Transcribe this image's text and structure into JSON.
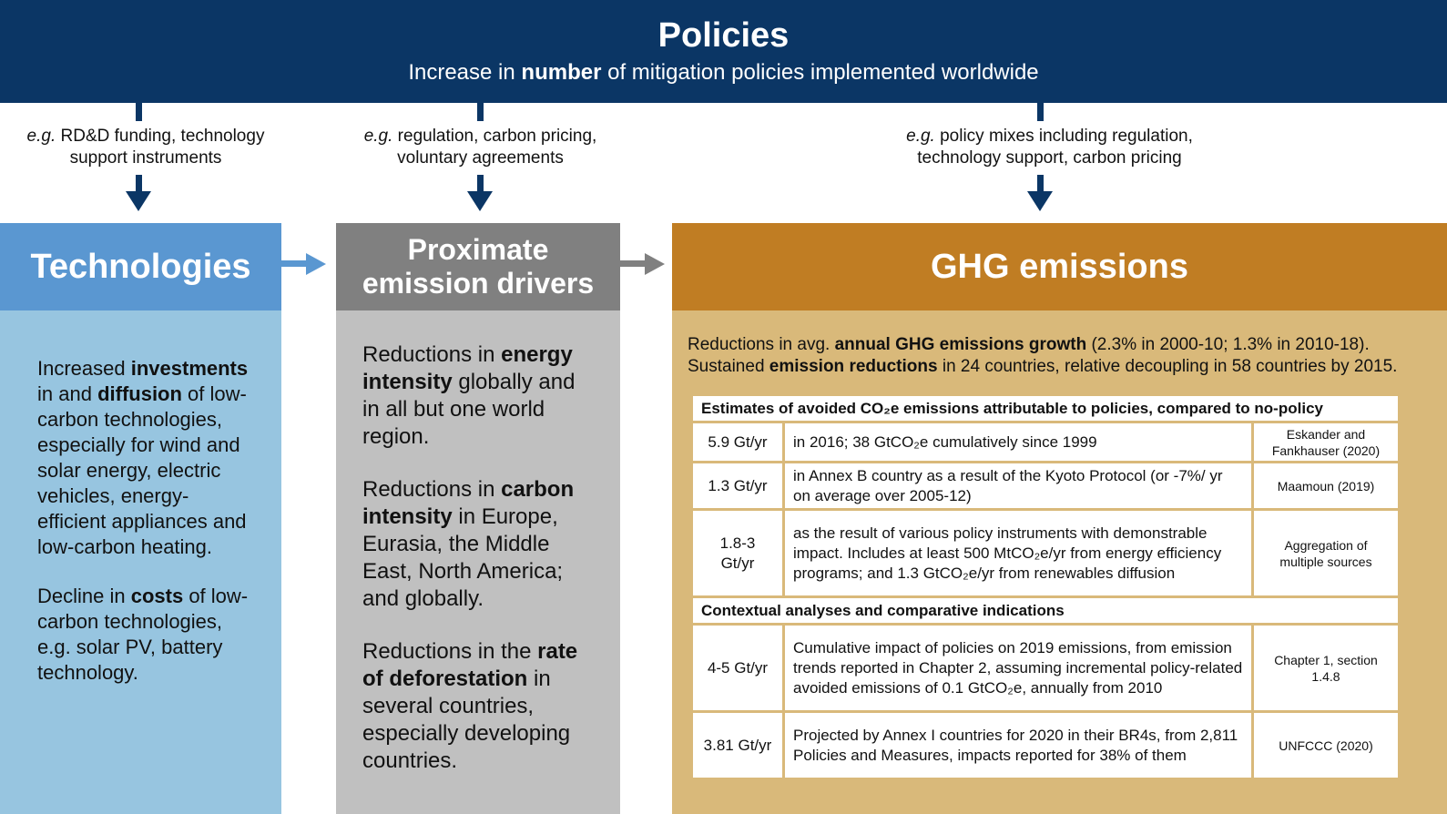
{
  "policies": {
    "title": "Policies",
    "subtitle_pre": "Increase in ",
    "subtitle_bold": "number",
    "subtitle_post": " of mitigation policies implemented worldwide"
  },
  "examples": [
    {
      "eg": "e.g.",
      "text": " RD&D funding, technology support instruments"
    },
    {
      "eg": "e.g.",
      "text": " regulation, carbon pricing, voluntary agreements"
    },
    {
      "eg": "e.g.",
      "text": " policy mixes including regulation, technology support, carbon pricing"
    }
  ],
  "technologies": {
    "title": "Technologies",
    "p1": [
      "Increased ",
      "investments",
      " in and ",
      "diffusion",
      " of low-carbon technologies, especially for wind and solar energy, electric vehicles, energy-efficient appliances and low-carbon heating."
    ],
    "p2": [
      "Decline in ",
      "costs",
      " of low-carbon technologies, e.g. solar PV, battery technology."
    ]
  },
  "drivers": {
    "title_line1": "Proximate",
    "title_line2": "emission drivers",
    "p1": [
      "Reductions in ",
      "energy intensity",
      " globally and in all but one world region."
    ],
    "p2": [
      "Reductions in ",
      "carbon intensity",
      " in Europe, Eurasia, the Middle East, North America; and globally."
    ],
    "p3": [
      "Reductions in the ",
      "rate of deforestation",
      " in several countries, especially developing countries."
    ]
  },
  "ghg": {
    "title": "GHG emissions",
    "line1": [
      "Reductions in avg. ",
      "annual GHG emissions growth",
      " (2.3% in 2000-10; 1.3% in 2010-18)."
    ],
    "line2": [
      "Sustained ",
      "emission reductions",
      " in 24 countries, relative decoupling in 58 countries by 2015."
    ],
    "table": {
      "section1": "Estimates of avoided CO₂e emissions attributable to policies, compared to no-policy",
      "rows1": [
        {
          "value": "5.9 Gt/yr",
          "desc": "in 2016; 38 GtCO₂e cumulatively since 1999",
          "source": "Eskander and Fankhauser (2020)"
        },
        {
          "value": "1.3 Gt/yr",
          "desc": "in Annex B country as a result of the Kyoto Protocol (or -7%/ yr on average over 2005-12)",
          "source": "Maamoun (2019)"
        },
        {
          "value": "1.8-3 Gt/yr",
          "desc": "as the result of various policy instruments with demonstrable impact. Includes at least 500 MtCO₂e/yr from energy efficiency programs; and 1.3 GtCO₂e/yr from renewables diffusion",
          "source": "Aggregation of multiple sources"
        }
      ],
      "section2": "Contextual analyses and comparative indications",
      "rows2": [
        {
          "value": "4-5 Gt/yr",
          "desc": "Cumulative impact of policies on 2019 emissions, from emission trends reported in Chapter 2, assuming incremental policy-related avoided emissions of  0.1 GtCO₂e, annually from 2010",
          "source": "Chapter 1, section 1.4.8"
        },
        {
          "value": "3.81 Gt/yr",
          "desc": "Projected by Annex I countries for 2020 in their BR4s, from 2,811 Policies and Measures, impacts reported for 38% of them",
          "source": "UNFCCC (2020)"
        }
      ]
    }
  },
  "colors": {
    "banner": "#0b3665",
    "tech_header": "#5a97d1",
    "tech_body": "#97c5e0",
    "drivers_header": "#808080",
    "drivers_body": "#c0c0c0",
    "ghg_header": "#c07d23",
    "ghg_body": "#d9b97a"
  }
}
